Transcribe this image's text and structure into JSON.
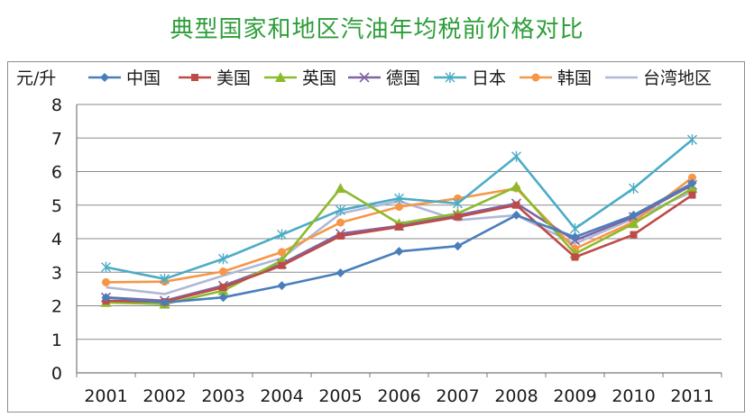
{
  "chart_data": {
    "type": "line",
    "title": "典型国家和地区汽油年均税前价格对比",
    "ylabel": "元/升",
    "xlabel": "",
    "ylim": [
      0,
      8
    ],
    "yticks": [
      0,
      1,
      2,
      3,
      4,
      5,
      6,
      7,
      8
    ],
    "categories": [
      "2001",
      "2002",
      "2003",
      "2004",
      "2005",
      "2006",
      "2007",
      "2008",
      "2009",
      "2010",
      "2011"
    ],
    "grid": true,
    "legend_position": "top",
    "series": [
      {
        "name": "中国",
        "color": "#4a7ebb",
        "marker": "diamond",
        "values": [
          2.25,
          2.1,
          2.25,
          2.6,
          2.98,
          3.62,
          3.78,
          4.7,
          4.05,
          4.7,
          5.65
        ]
      },
      {
        "name": "美国",
        "color": "#be4b48",
        "marker": "square",
        "values": [
          2.15,
          2.12,
          2.55,
          3.2,
          4.08,
          4.35,
          4.65,
          5.0,
          3.45,
          4.12,
          5.3
        ]
      },
      {
        "name": "英国",
        "color": "#8dba2d",
        "marker": "triangle",
        "values": [
          2.1,
          2.05,
          2.45,
          3.35,
          5.5,
          4.45,
          4.75,
          5.55,
          3.55,
          4.45,
          5.5
        ]
      },
      {
        "name": "德国",
        "color": "#8064a2",
        "marker": "x",
        "values": [
          2.25,
          2.15,
          2.6,
          3.25,
          4.15,
          4.38,
          4.7,
          5.05,
          3.95,
          4.65,
          5.6
        ]
      },
      {
        "name": "日本",
        "color": "#4bacc6",
        "marker": "star",
        "values": [
          3.15,
          2.8,
          3.4,
          4.12,
          4.85,
          5.2,
          5.05,
          6.45,
          4.3,
          5.5,
          6.95
        ]
      },
      {
        "name": "韩国",
        "color": "#f79646",
        "marker": "circle",
        "values": [
          2.7,
          2.72,
          3.02,
          3.6,
          4.48,
          4.95,
          5.2,
          5.5,
          3.7,
          4.5,
          5.82
        ]
      },
      {
        "name": "台湾地区",
        "color": "#b0b8d8",
        "marker": "none",
        "values": [
          2.55,
          2.35,
          2.9,
          3.42,
          4.75,
          5.12,
          4.55,
          4.7,
          3.85,
          4.6,
          5.4
        ]
      }
    ]
  }
}
